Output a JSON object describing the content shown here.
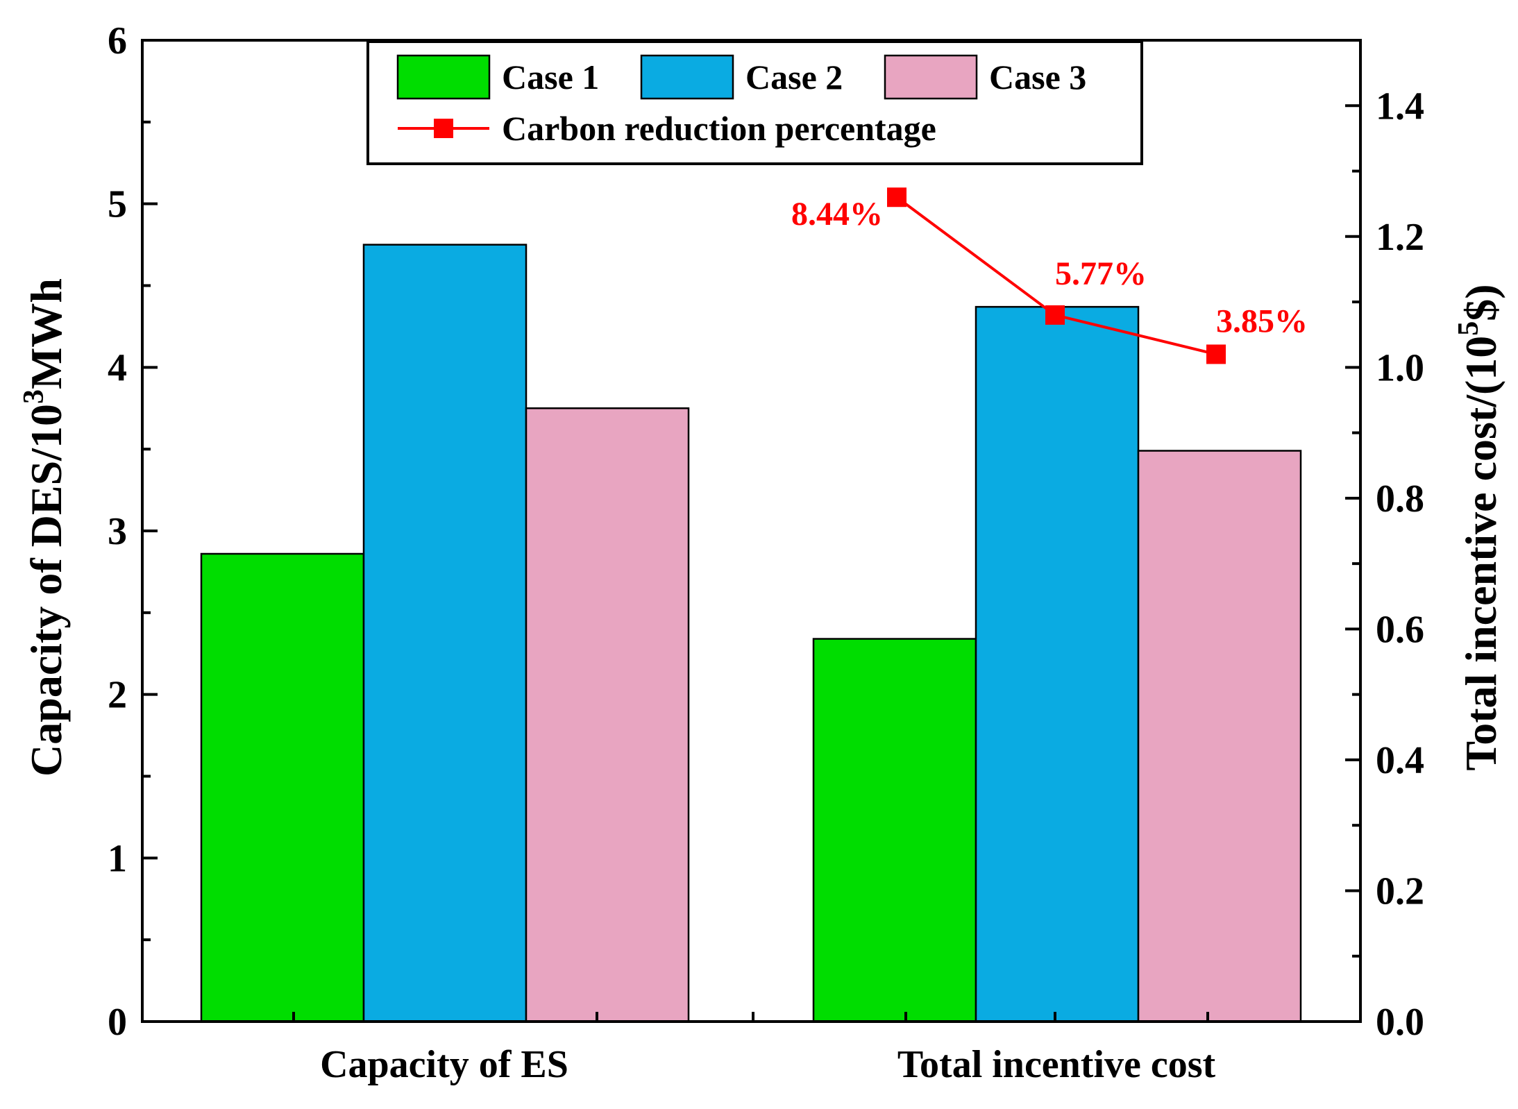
{
  "chart_data": {
    "type": "bar",
    "categories": [
      "Capacity of ES",
      "Total incentive cost"
    ],
    "series": [
      {
        "name": "Case 1",
        "color": "#00dd00",
        "values": [
          2.86,
          2.34
        ]
      },
      {
        "name": "Case 2",
        "color": "#0aabe2",
        "values": [
          4.75,
          4.37
        ]
      },
      {
        "name": "Case 3",
        "color": "#e8a5c1",
        "values": [
          3.75,
          3.49
        ]
      }
    ],
    "line_series": {
      "name": "Carbon reduction percentage",
      "color": "#ff0000",
      "axis": "right",
      "category": "Total incentive cost",
      "values": [
        1.26,
        1.08,
        1.02
      ],
      "labels": [
        "8.44%",
        "5.77%",
        "3.85%"
      ]
    },
    "left_axis": {
      "label_prefix": "Capacity of DES/10",
      "label_sup": "3",
      "label_suffix": "MWh",
      "ylim": [
        0,
        6
      ],
      "ticks": [
        "0",
        "1",
        "2",
        "3",
        "4",
        "5",
        "6"
      ]
    },
    "right_axis": {
      "label_prefix": "Total incentive cost/(10",
      "label_sup": "5",
      "label_suffix": "$)",
      "ylim": [
        0,
        1.5
      ],
      "ticks": [
        "0.0",
        "0.2",
        "0.4",
        "0.6",
        "0.8",
        "1.0",
        "1.2",
        "1.4"
      ]
    },
    "legend": {
      "position": "top-center"
    }
  }
}
